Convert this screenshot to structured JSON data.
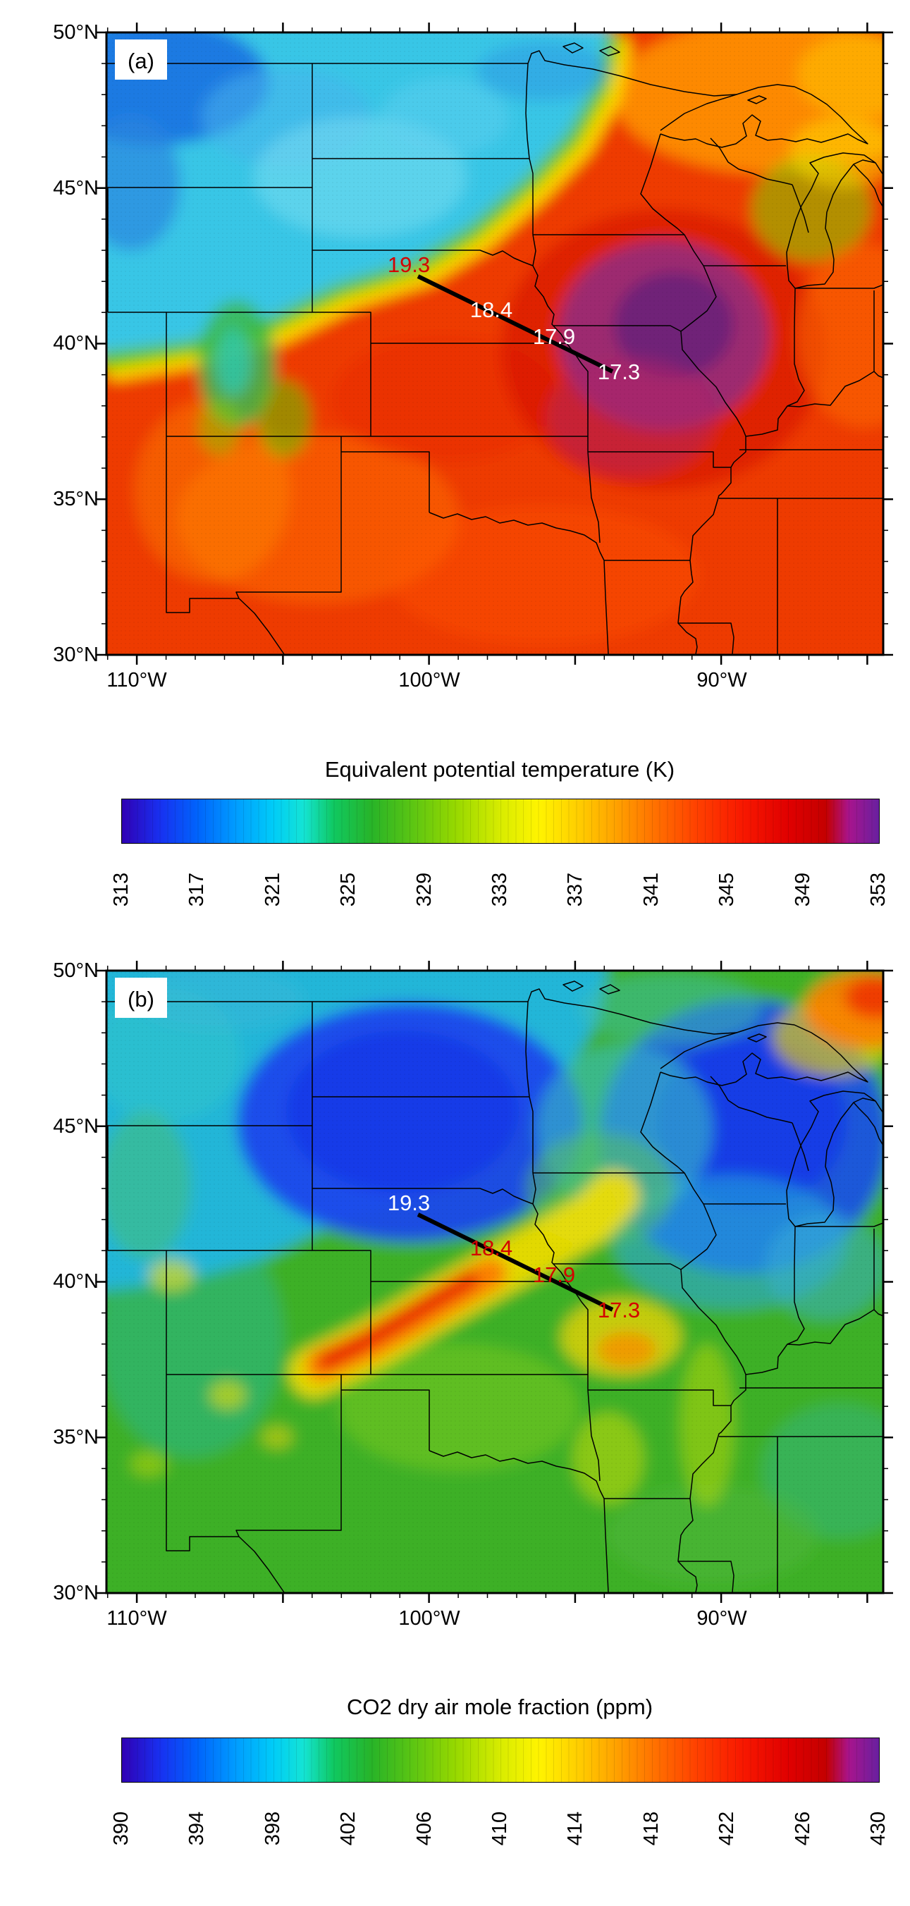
{
  "axes": {
    "lat_labels": [
      "50°N",
      "45°N",
      "40°N",
      "35°N",
      "30°N"
    ],
    "lon_labels": [
      "110°W",
      "100°W",
      "90°W"
    ]
  },
  "panel_a": {
    "tag": "(a)",
    "title": "Equivalent potential temperature (K)",
    "colorbar_labels": [
      "313",
      "317",
      "321",
      "325",
      "329",
      "333",
      "337",
      "341",
      "345",
      "349",
      "353"
    ],
    "track": {
      "labels": [
        {
          "text": "19.3",
          "color": "#d40000"
        },
        {
          "text": "18.4",
          "color": "#ffffff"
        },
        {
          "text": "17.9",
          "color": "#ffffff"
        },
        {
          "text": "17.3",
          "color": "#ffffff"
        }
      ]
    }
  },
  "panel_b": {
    "tag": "(b)",
    "title": "CO2 dry air mole fraction (ppm)",
    "colorbar_labels": [
      "390",
      "394",
      "398",
      "402",
      "406",
      "410",
      "414",
      "418",
      "422",
      "426",
      "430"
    ],
    "track": {
      "labels": [
        {
          "text": "19.3",
          "color": "#ffffff"
        },
        {
          "text": "18.4",
          "color": "#d40000"
        },
        {
          "text": "17.9",
          "color": "#d40000"
        },
        {
          "text": "17.3",
          "color": "#d40000"
        }
      ]
    }
  },
  "chart_data": [
    {
      "type": "heatmap",
      "panel": "a",
      "title": "Equivalent potential temperature (K)",
      "variable": "equivalent potential temperature",
      "units": "K",
      "colorbar_ticks": [
        313,
        317,
        321,
        325,
        329,
        333,
        337,
        341,
        345,
        349,
        353
      ],
      "colormap": "rainbow: dark blue - blue - cyan - green - yellow - orange - red - dark red - purple",
      "map_extent": {
        "lon_deg_W": [
          111,
          84.5
        ],
        "lat_deg_N": [
          30,
          50
        ]
      },
      "x_tick_labels_deg_W": [
        110,
        100,
        90
      ],
      "y_tick_labels_deg_N": [
        50,
        45,
        40,
        35,
        30
      ],
      "overlay": "US state boundaries, Great Lakes and Mississippi River outlines",
      "flight_track": {
        "shape": "thick straight black line from about (100.2 W, 42.3 N) to about (93.3 W, 39.0 N)",
        "time_labels": [
          {
            "label": "19.3",
            "approx_lon_W": 100.6,
            "approx_lat_N": 42.4,
            "color": "red"
          },
          {
            "label": "18.4",
            "approx_lon_W": 97.9,
            "approx_lat_N": 40.9,
            "color": "white"
          },
          {
            "label": "17.9",
            "approx_lon_W": 95.7,
            "approx_lat_N": 40.0,
            "color": "white"
          },
          {
            "label": "17.3",
            "approx_lon_W": 93.5,
            "approx_lat_N": 39.0,
            "color": "white"
          }
        ]
      },
      "features": [
        "sharp SW-NE front separating cool sector (theta-e ~317-327 K, cyan/blue, NW of front) from warm sector (theta-e ~337-349 K, orange/red, SE of front)",
        "theta-e maximum ~351-353 K (dark purple) over Iowa/Missouri/Illinois",
        "coolest air ~313-317 K (dark blue) in the NW corner (Montana/Wyoming)",
        "green band ~325-329 K along the front and over the Colorado Rockies",
        "orange/yellow ~335-341 K over the Great Lakes / NE corner"
      ]
    },
    {
      "type": "heatmap",
      "panel": "b",
      "title": "CO2 dry air mole fraction (ppm)",
      "variable": "CO2 dry air mole fraction",
      "units": "ppm",
      "colorbar_ticks": [
        390,
        394,
        398,
        402,
        406,
        410,
        414,
        418,
        422,
        426,
        430
      ],
      "colormap": "rainbow: dark blue - blue - cyan - green - yellow - orange - red - dark red - purple",
      "map_extent": {
        "lon_deg_W": [
          111,
          84.5
        ],
        "lat_deg_N": [
          30,
          50
        ]
      },
      "x_tick_labels_deg_W": [
        110,
        100,
        90
      ],
      "y_tick_labels_deg_N": [
        50,
        45,
        40,
        35,
        30
      ],
      "overlay": "US state boundaries, Great Lakes and Mississippi River outlines; same flight track as panel a",
      "flight_track": {
        "shape": "thick straight black line from about (100.2 W, 42.3 N) to about (93.3 W, 39.0 N)",
        "time_labels": [
          {
            "label": "19.3",
            "approx_lon_W": 100.6,
            "approx_lat_N": 42.4,
            "color": "white"
          },
          {
            "label": "18.4",
            "approx_lon_W": 97.9,
            "approx_lat_N": 40.9,
            "color": "red"
          },
          {
            "label": "17.9",
            "approx_lon_W": 95.7,
            "approx_lat_N": 40.0,
            "color": "red"
          },
          {
            "label": "17.3",
            "approx_lon_W": 93.5,
            "approx_lat_N": 39.0,
            "color": "red"
          }
        ]
      },
      "features": [
        "very low CO2 ~390-393 ppm (uniform dark blue) over Nebraska / South Dakota NW of the front",
        "second low-CO2 region ~390-395 ppm (blue) over Wisconsin / Lake Michigan / northern Illinois",
        "narrow CO2 maximum ~414-424 ppm (red-orange streak fringed with yellow) along the frontal convergence zone over NE Colorado - SW Nebraska",
        "moderate CO2 ~398-406 ppm (green) over the southern half of the domain",
        "elevated CO2 ~408-416 ppm (yellow/orange patches) over Missouri and in the far NE corner"
      ]
    }
  ]
}
